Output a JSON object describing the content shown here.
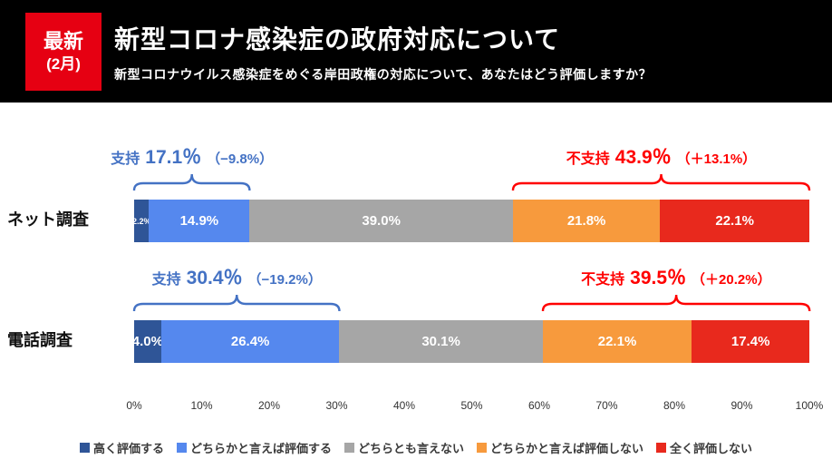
{
  "header": {
    "badge": {
      "line1": "最新",
      "line2": "(2月)"
    },
    "title": "新型コロナ感染症の政府対応について",
    "subtitle": "新型コロナウイルス感染症をめぐる岸田政権の対応について、あなたはどう評価しますか？"
  },
  "chart_data": {
    "type": "bar",
    "orientation": "horizontal",
    "stacked": true,
    "unit": "%",
    "categories": [
      "ネット調査",
      "電話調査"
    ],
    "series": [
      {
        "name": "高く評価する",
        "color": "#2F5597",
        "values": [
          2.2,
          4.0
        ]
      },
      {
        "name": "どちらかと言えば評価する",
        "color": "#5588EE",
        "values": [
          14.9,
          26.4
        ]
      },
      {
        "name": "どちらとも言えない",
        "color": "#A6A6A6",
        "values": [
          39.0,
          30.1
        ]
      },
      {
        "name": "どちらかと言えば評価しない",
        "color": "#F79A3D",
        "values": [
          21.8,
          22.1
        ]
      },
      {
        "name": "全く評価しない",
        "color": "#E8291D",
        "values": [
          22.1,
          17.4
        ]
      }
    ],
    "xlim": [
      0,
      100
    ],
    "x_ticks": [
      "0%",
      "10%",
      "20%",
      "30%",
      "40%",
      "50%",
      "60%",
      "70%",
      "80%",
      "90%",
      "100%"
    ],
    "legend_position": "bottom",
    "annotations": [
      {
        "row": 0,
        "side": "support",
        "label": "支持",
        "value": "17.1％",
        "change": "（−9.8%）",
        "span": [
          0,
          17.1
        ],
        "color": "#4472C4"
      },
      {
        "row": 0,
        "side": "oppose",
        "label": "不支持",
        "value": "43.9％",
        "change": "（＋13.1%）",
        "span": [
          56.1,
          100
        ],
        "color": "#FF0000"
      },
      {
        "row": 1,
        "side": "support",
        "label": "支持",
        "value": "30.4％",
        "change": "（−19.2%）",
        "span": [
          0,
          30.4
        ],
        "color": "#4472C4"
      },
      {
        "row": 1,
        "side": "oppose",
        "label": "不支持",
        "value": "39.5％",
        "change": "（＋20.2%）",
        "span": [
          60.5,
          100
        ],
        "color": "#FF0000"
      }
    ]
  }
}
